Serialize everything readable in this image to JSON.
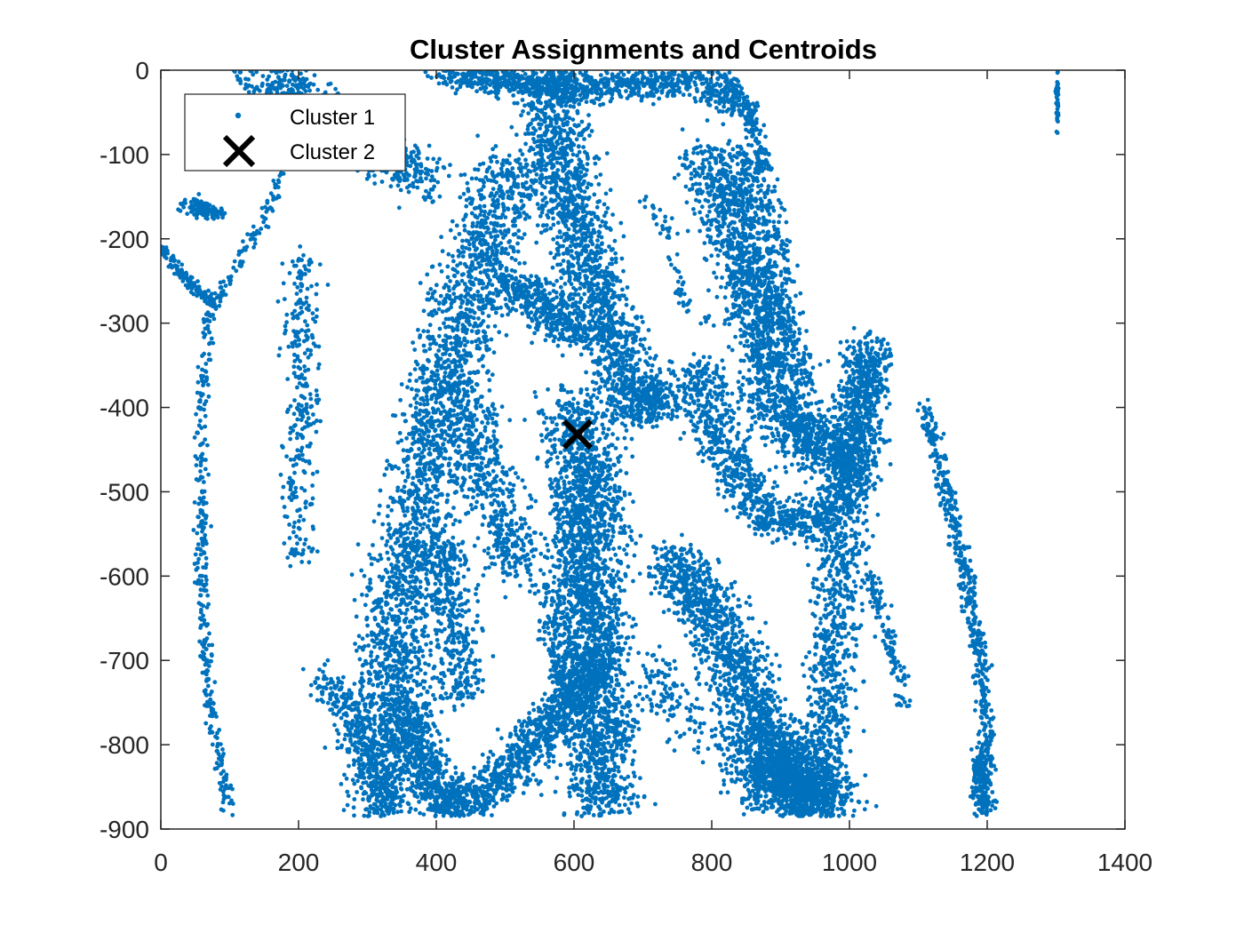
{
  "chart_data": {
    "type": "scatter",
    "title": "Cluster Assignments and Centroids",
    "xlabel": "",
    "ylabel": "",
    "xlim": [
      0,
      1400
    ],
    "ylim": [
      -900,
      0
    ],
    "x_ticks": [
      0,
      200,
      400,
      600,
      800,
      1000,
      1200,
      1400
    ],
    "y_ticks": [
      0,
      -100,
      -200,
      -300,
      -400,
      -500,
      -600,
      -700,
      -800,
      -900
    ],
    "grid": false,
    "legend_position": "top-left",
    "series": [
      {
        "name": "Cluster 1",
        "marker": "dot",
        "color": "#0072BD",
        "bands": [
          {
            "pts": [
              [
                110,
                0
              ],
              [
                150,
                -60
              ],
              [
                180,
                -110
              ],
              [
                160,
                -160
              ],
              [
                110,
                -230
              ],
              [
                70,
                -290
              ],
              [
                60,
                -400
              ],
              [
                60,
                -600
              ],
              [
                70,
                -750
              ],
              [
                100,
                -880
              ]
            ],
            "w": 8,
            "n": 500
          },
          {
            "pts": [
              [
                150,
                0
              ],
              [
                250,
                -60
              ],
              [
                340,
                -110
              ],
              [
                390,
                -130
              ]
            ],
            "w": 35,
            "n": 700
          },
          {
            "pts": [
              [
                0,
                -210
              ],
              [
                40,
                -250
              ],
              [
                80,
                -280
              ]
            ],
            "w": 8,
            "n": 150
          },
          {
            "pts": [
              [
                40,
                -160
              ],
              [
                80,
                -170
              ]
            ],
            "w": 12,
            "n": 120
          },
          {
            "pts": [
              [
                510,
                -110
              ],
              [
                460,
                -230
              ],
              [
                410,
                -380
              ],
              [
                380,
                -500
              ],
              [
                350,
                -620
              ],
              [
                330,
                -750
              ],
              [
                320,
                -830
              ],
              [
                320,
                -880
              ]
            ],
            "w": 45,
            "n": 2500
          },
          {
            "pts": [
              [
                350,
                -750
              ],
              [
                380,
                -820
              ],
              [
                420,
                -880
              ]
            ],
            "w": 30,
            "n": 600
          },
          {
            "pts": [
              [
                240,
                -720
              ],
              [
                300,
                -800
              ],
              [
                330,
                -880
              ]
            ],
            "w": 25,
            "n": 300
          },
          {
            "pts": [
              [
                560,
                0
              ],
              [
                580,
                -100
              ],
              [
                610,
                -200
              ],
              [
                640,
                -280
              ],
              [
                670,
                -350
              ],
              [
                700,
                -400
              ],
              [
                740,
                -380
              ]
            ],
            "w": 40,
            "n": 1800
          },
          {
            "pts": [
              [
                600,
                -400
              ],
              [
                620,
                -500
              ],
              [
                620,
                -600
              ],
              [
                630,
                -700
              ],
              [
                640,
                -800
              ],
              [
                640,
                -880
              ]
            ],
            "w": 45,
            "n": 2500
          },
          {
            "pts": [
              [
                630,
                -700
              ],
              [
                560,
                -780
              ],
              [
                480,
                -850
              ],
              [
                420,
                -880
              ]
            ],
            "w": 30,
            "n": 900
          },
          {
            "pts": [
              [
                500,
                -250
              ],
              [
                560,
                -280
              ],
              [
                600,
                -320
              ]
            ],
            "w": 30,
            "n": 400
          },
          {
            "pts": [
              [
                400,
                0
              ],
              [
                600,
                -20
              ],
              [
                780,
                -10
              ],
              [
                830,
                -40
              ]
            ],
            "w": 25,
            "n": 1000
          },
          {
            "pts": [
              [
                800,
                -100
              ],
              [
                840,
                -200
              ],
              [
                870,
                -280
              ],
              [
                880,
                -350
              ],
              [
                900,
                -400
              ],
              [
                940,
                -440
              ],
              [
                1000,
                -450
              ]
            ],
            "w": 40,
            "n": 1800
          },
          {
            "pts": [
              [
                780,
                -350
              ],
              [
                800,
                -420
              ],
              [
                840,
                -480
              ],
              [
                880,
                -530
              ],
              [
                950,
                -540
              ],
              [
                1000,
                -480
              ],
              [
                1020,
                -380
              ],
              [
                1030,
                -330
              ]
            ],
            "w": 30,
            "n": 1300
          },
          {
            "pts": [
              [
                1030,
                -330
              ],
              [
                1010,
                -450
              ],
              [
                990,
                -550
              ],
              [
                980,
                -650
              ],
              [
                970,
                -750
              ],
              [
                960,
                -820
              ]
            ],
            "w": 30,
            "n": 1000
          },
          {
            "pts": [
              [
                740,
                -580
              ],
              [
                800,
                -640
              ],
              [
                850,
                -730
              ],
              [
                900,
                -820
              ],
              [
                950,
                -880
              ]
            ],
            "w": 40,
            "n": 1500
          },
          {
            "pts": [
              [
                880,
                -820
              ],
              [
                940,
                -850
              ],
              [
                960,
                -880
              ]
            ],
            "w": 55,
            "n": 1200
          },
          {
            "pts": [
              [
                820,
                -10
              ],
              [
                860,
                -60
              ],
              [
                880,
                -120
              ]
            ],
            "w": 12,
            "n": 200
          },
          {
            "pts": [
              [
                1110,
                -400
              ],
              [
                1140,
                -500
              ],
              [
                1170,
                -600
              ],
              [
                1190,
                -700
              ],
              [
                1200,
                -800
              ],
              [
                1200,
                -880
              ]
            ],
            "w": 10,
            "n": 500
          },
          {
            "pts": [
              [
                1190,
                -810
              ],
              [
                1190,
                -880
              ]
            ],
            "w": 10,
            "n": 150
          },
          {
            "pts": [
              [
                1302,
                0
              ],
              [
                1302,
                -75
              ]
            ],
            "w": 2,
            "n": 40
          },
          {
            "pts": [
              [
                1030,
                -600
              ],
              [
                1060,
                -680
              ],
              [
                1080,
                -750
              ]
            ],
            "w": 12,
            "n": 120
          },
          {
            "pts": [
              [
                210,
                -220
              ],
              [
                200,
                -300
              ],
              [
                210,
                -380
              ],
              [
                200,
                -480
              ],
              [
                200,
                -580
              ]
            ],
            "w": 20,
            "n": 300
          },
          {
            "pts": [
              [
                440,
                -380
              ],
              [
                460,
                -440
              ],
              [
                490,
                -520
              ],
              [
                520,
                -600
              ]
            ],
            "w": 35,
            "n": 500
          },
          {
            "pts": [
              [
                400,
                -560
              ],
              [
                420,
                -620
              ],
              [
                430,
                -680
              ],
              [
                440,
                -750
              ]
            ],
            "w": 30,
            "n": 400
          },
          {
            "pts": [
              [
                560,
                -620
              ],
              [
                580,
                -700
              ],
              [
                600,
                -780
              ]
            ],
            "w": 18,
            "n": 150
          },
          {
            "pts": [
              [
                840,
                -100
              ],
              [
                870,
                -140
              ],
              [
                890,
                -180
              ],
              [
                900,
                -280
              ],
              [
                940,
                -380
              ]
            ],
            "w": 20,
            "n": 300
          },
          {
            "pts": [
              [
                700,
                -140
              ],
              [
                740,
                -200
              ],
              [
                760,
                -280
              ],
              [
                800,
                -300
              ]
            ],
            "w": 10,
            "n": 60
          },
          {
            "pts": [
              [
                700,
                -700
              ],
              [
                760,
                -760
              ],
              [
                820,
                -800
              ],
              [
                860,
                -850
              ]
            ],
            "w": 40,
            "n": 200
          }
        ]
      },
      {
        "name": "Cluster 2",
        "marker": "x",
        "color": "#000000",
        "points": [
          [
            605,
            -432
          ]
        ]
      }
    ]
  }
}
